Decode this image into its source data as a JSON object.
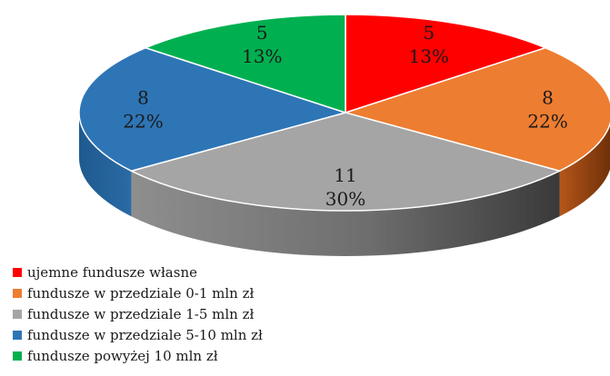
{
  "chart_data": {
    "type": "pie",
    "title": "",
    "slices": [
      {
        "name": "ujemne fundusze własne",
        "value": 5,
        "percent_label": "13%",
        "color": "#ff0000"
      },
      {
        "name": "fundusze w przedziale 0-1 mln zł",
        "value": 8,
        "percent_label": "22%",
        "color": "#ed7d31"
      },
      {
        "name": "fundusze w przedziale 1-5 mln zł",
        "value": 11,
        "percent_label": "30%",
        "color": "#a5a5a5"
      },
      {
        "name": "fundusze w przedziale 5-10 mln zł",
        "value": 8,
        "percent_label": "22%",
        "color": "#2e75b6"
      },
      {
        "name": "fundusze powyżej 10 mln zł",
        "value": 5,
        "percent_label": "13%",
        "color": "#00b050"
      }
    ],
    "legend_position": "bottom-left",
    "style": "3d-pie"
  }
}
